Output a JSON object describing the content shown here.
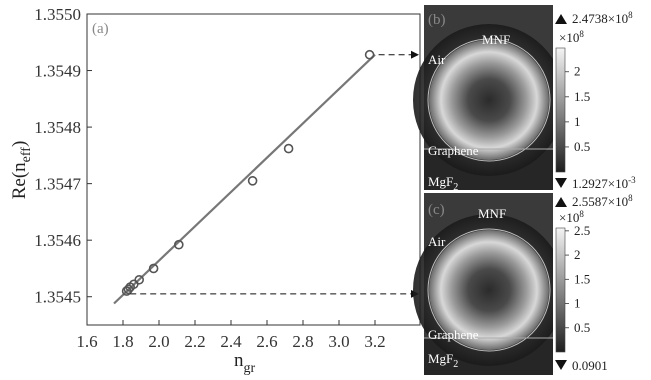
{
  "chart_data": [
    {
      "type": "scatter",
      "panel_label": "(a)",
      "xlabel": "n",
      "xlabel_sub": "gr",
      "ylabel": "Re(n",
      "ylabel_sub": "eff",
      "ylabel_close": ")",
      "xlim": [
        1.6,
        3.45
      ],
      "ylim": [
        1.35445,
        1.355
      ],
      "x_ticks": [
        "1.6",
        "1.8",
        "2.0",
        "2.2",
        "2.4",
        "2.6",
        "2.8",
        "3.0",
        "3.2"
      ],
      "y_ticks": [
        "1.3545",
        "1.3546",
        "1.3547",
        "1.3548",
        "1.3549",
        "1.3550"
      ],
      "grid": false,
      "marker_color": "#555555",
      "line_color": "#777777",
      "points": [
        {
          "x": 1.82,
          "y": 1.35451
        },
        {
          "x": 1.83,
          "y": 1.354513
        },
        {
          "x": 1.84,
          "y": 1.354517
        },
        {
          "x": 1.86,
          "y": 1.354522
        },
        {
          "x": 1.89,
          "y": 1.35453
        },
        {
          "x": 1.97,
          "y": 1.35455
        },
        {
          "x": 2.11,
          "y": 1.354592
        },
        {
          "x": 2.52,
          "y": 1.354705
        },
        {
          "x": 2.72,
          "y": 1.354762
        },
        {
          "x": 3.17,
          "y": 1.354928
        }
      ],
      "fit_line": {
        "x": [
          1.75,
          3.2
        ],
        "y": [
          1.354488,
          1.354928
        ]
      },
      "arrows": [
        {
          "from": {
            "x": 3.22,
            "y": 1.354928
          },
          "to_panel": "b"
        },
        {
          "from": {
            "x": 1.84,
            "y": 1.354505
          },
          "to_panel": "c"
        }
      ]
    },
    {
      "type": "heatmap",
      "panel_label": "(b)",
      "labels": {
        "fiber": "MNF",
        "air": "Air",
        "graphene": "Graphene",
        "substrate": "MgF",
        "substrate_sub": "2"
      },
      "colorbar": {
        "max": "2.4738×10",
        "max_exp": "8",
        "scale": "×10",
        "scale_exp": "8",
        "min": "1.2927×10",
        "min_exp": "-3",
        "ticks": [
          "2",
          "1.5",
          "1",
          "0.5"
        ]
      }
    },
    {
      "type": "heatmap",
      "panel_label": "(c)",
      "labels": {
        "fiber": "MNF",
        "air": "Air",
        "graphene": "Graphene",
        "substrate": "MgF",
        "substrate_sub": "2"
      },
      "colorbar": {
        "max": "2.5587×10",
        "max_exp": "8",
        "scale": "×10",
        "scale_exp": "8",
        "min": "0.0901",
        "ticks": [
          "2.5",
          "2",
          "1.5",
          "1",
          "0.5"
        ]
      }
    }
  ]
}
